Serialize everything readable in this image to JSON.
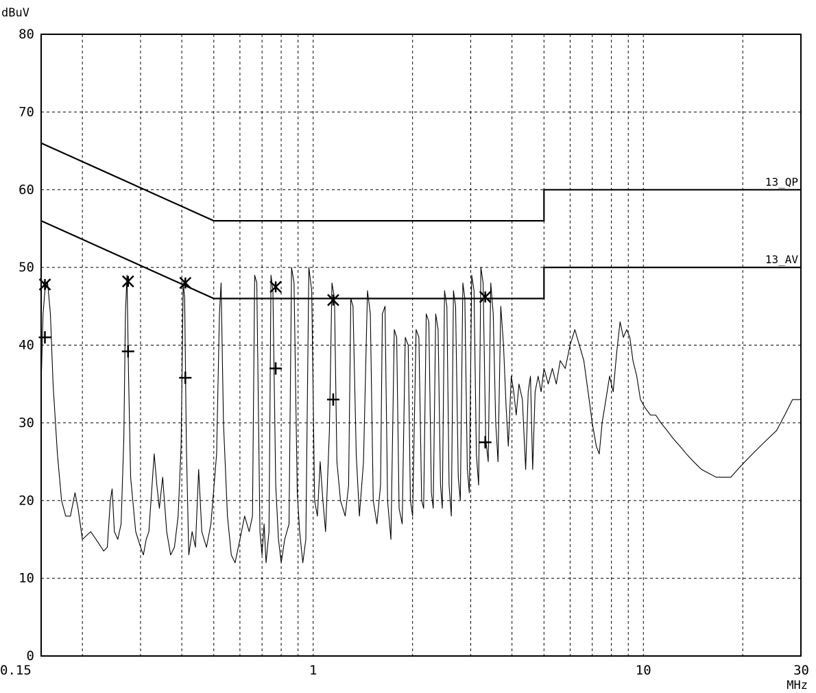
{
  "chart_data": {
    "type": "line",
    "ylabel": "dBuV",
    "xlabel": "MHz",
    "x_scale": "log",
    "xlim": [
      0.15,
      30
    ],
    "ylim": [
      0,
      80
    ],
    "grid": true,
    "x_tick_labels": [
      {
        "value": 0.15,
        "label": "0.15"
      },
      {
        "value": 1,
        "label": "1"
      },
      {
        "value": 10,
        "label": "10"
      },
      {
        "value": 30,
        "label": "30"
      }
    ],
    "y_tick_labels": [
      {
        "value": 0,
        "label": "0"
      },
      {
        "value": 10,
        "label": "10"
      },
      {
        "value": 20,
        "label": "20"
      },
      {
        "value": 30,
        "label": "30"
      },
      {
        "value": 40,
        "label": "40"
      },
      {
        "value": 50,
        "label": "50"
      },
      {
        "value": 60,
        "label": "60"
      },
      {
        "value": 70,
        "label": "70"
      },
      {
        "value": 80,
        "label": "80"
      }
    ],
    "limit_lines": [
      {
        "name": "13_QP",
        "points": [
          [
            0.15,
            66
          ],
          [
            0.5,
            56
          ],
          [
            5,
            56
          ],
          [
            5,
            60
          ],
          [
            30,
            60
          ]
        ]
      },
      {
        "name": "13_AV",
        "points": [
          [
            0.15,
            56
          ],
          [
            0.5,
            46
          ],
          [
            5,
            46
          ],
          [
            5,
            50
          ],
          [
            30,
            50
          ]
        ]
      }
    ],
    "trace": [
      [
        0.15,
        35
      ],
      [
        0.152,
        44
      ],
      [
        0.154,
        47
      ],
      [
        0.157,
        48
      ],
      [
        0.16,
        44
      ],
      [
        0.163,
        35
      ],
      [
        0.168,
        26
      ],
      [
        0.173,
        20
      ],
      [
        0.178,
        18
      ],
      [
        0.184,
        18
      ],
      [
        0.19,
        21
      ],
      [
        0.194,
        19
      ],
      [
        0.2,
        15
      ],
      [
        0.212,
        16
      ],
      [
        0.22,
        15
      ],
      [
        0.232,
        13.5
      ],
      [
        0.238,
        14
      ],
      [
        0.243,
        20
      ],
      [
        0.246,
        21.5
      ],
      [
        0.25,
        16
      ],
      [
        0.256,
        15
      ],
      [
        0.262,
        17
      ],
      [
        0.267,
        28
      ],
      [
        0.27,
        44
      ],
      [
        0.273,
        49
      ],
      [
        0.276,
        36
      ],
      [
        0.28,
        23
      ],
      [
        0.29,
        16
      ],
      [
        0.3,
        14
      ],
      [
        0.306,
        13
      ],
      [
        0.312,
        15
      ],
      [
        0.318,
        16
      ],
      [
        0.33,
        26
      ],
      [
        0.336,
        22
      ],
      [
        0.342,
        19
      ],
      [
        0.35,
        23
      ],
      [
        0.36,
        16
      ],
      [
        0.37,
        13
      ],
      [
        0.38,
        14
      ],
      [
        0.39,
        18
      ],
      [
        0.398,
        27
      ],
      [
        0.404,
        48
      ],
      [
        0.408,
        46
      ],
      [
        0.413,
        27
      ],
      [
        0.42,
        13
      ],
      [
        0.43,
        16
      ],
      [
        0.44,
        14
      ],
      [
        0.45,
        24
      ],
      [
        0.46,
        16
      ],
      [
        0.475,
        14
      ],
      [
        0.49,
        17
      ],
      [
        0.51,
        26
      ],
      [
        0.52,
        44
      ],
      [
        0.526,
        48
      ],
      [
        0.535,
        30
      ],
      [
        0.55,
        18
      ],
      [
        0.565,
        13
      ],
      [
        0.58,
        12
      ],
      [
        0.6,
        15
      ],
      [
        0.62,
        18
      ],
      [
        0.64,
        16
      ],
      [
        0.655,
        18
      ],
      [
        0.665,
        49
      ],
      [
        0.675,
        48
      ],
      [
        0.69,
        16
      ],
      [
        0.7,
        13
      ],
      [
        0.71,
        17
      ],
      [
        0.72,
        12
      ],
      [
        0.735,
        16
      ],
      [
        0.745,
        49
      ],
      [
        0.755,
        47
      ],
      [
        0.77,
        22
      ],
      [
        0.785,
        15
      ],
      [
        0.8,
        12
      ],
      [
        0.82,
        15
      ],
      [
        0.845,
        17
      ],
      [
        0.86,
        50
      ],
      [
        0.875,
        48
      ],
      [
        0.895,
        21
      ],
      [
        0.91,
        16
      ],
      [
        0.93,
        12
      ],
      [
        0.95,
        15
      ],
      [
        0.97,
        50
      ],
      [
        0.99,
        47
      ],
      [
        1.01,
        20
      ],
      [
        1.03,
        18
      ],
      [
        1.05,
        25
      ],
      [
        1.07,
        20
      ],
      [
        1.09,
        16
      ],
      [
        1.12,
        29
      ],
      [
        1.14,
        48
      ],
      [
        1.16,
        46
      ],
      [
        1.18,
        25
      ],
      [
        1.21,
        20
      ],
      [
        1.25,
        18
      ],
      [
        1.28,
        22
      ],
      [
        1.3,
        46
      ],
      [
        1.32,
        45
      ],
      [
        1.35,
        26
      ],
      [
        1.38,
        18
      ],
      [
        1.42,
        25
      ],
      [
        1.46,
        47
      ],
      [
        1.49,
        44
      ],
      [
        1.52,
        20
      ],
      [
        1.56,
        17
      ],
      [
        1.6,
        22
      ],
      [
        1.62,
        44
      ],
      [
        1.65,
        45
      ],
      [
        1.68,
        20
      ],
      [
        1.72,
        15
      ],
      [
        1.76,
        42
      ],
      [
        1.79,
        41
      ],
      [
        1.82,
        19
      ],
      [
        1.86,
        17
      ],
      [
        1.9,
        41
      ],
      [
        1.94,
        40
      ],
      [
        1.97,
        20
      ],
      [
        2.0,
        18
      ],
      [
        2.05,
        42
      ],
      [
        2.09,
        41
      ],
      [
        2.13,
        20
      ],
      [
        2.16,
        19
      ],
      [
        2.2,
        44
      ],
      [
        2.24,
        43
      ],
      [
        2.28,
        21
      ],
      [
        2.31,
        19
      ],
      [
        2.35,
        44
      ],
      [
        2.39,
        42
      ],
      [
        2.43,
        22
      ],
      [
        2.46,
        19
      ],
      [
        2.5,
        47
      ],
      [
        2.54,
        45
      ],
      [
        2.58,
        22
      ],
      [
        2.62,
        18
      ],
      [
        2.66,
        47
      ],
      [
        2.7,
        45
      ],
      [
        2.75,
        23
      ],
      [
        2.79,
        20
      ],
      [
        2.84,
        48
      ],
      [
        2.88,
        46
      ],
      [
        2.93,
        24
      ],
      [
        2.97,
        21
      ],
      [
        3.02,
        49
      ],
      [
        3.07,
        47
      ],
      [
        3.12,
        26
      ],
      [
        3.17,
        22
      ],
      [
        3.22,
        50
      ],
      [
        3.27,
        48
      ],
      [
        3.33,
        28
      ],
      [
        3.39,
        25
      ],
      [
        3.45,
        48
      ],
      [
        3.51,
        44
      ],
      [
        3.57,
        30
      ],
      [
        3.63,
        25
      ],
      [
        3.7,
        45
      ],
      [
        3.77,
        40
      ],
      [
        3.84,
        32
      ],
      [
        3.9,
        27
      ],
      [
        3.98,
        36
      ],
      [
        4.05,
        34
      ],
      [
        4.12,
        31
      ],
      [
        4.2,
        35
      ],
      [
        4.3,
        33
      ],
      [
        4.4,
        24
      ],
      [
        4.48,
        34
      ],
      [
        4.55,
        36
      ],
      [
        4.62,
        24
      ],
      [
        4.7,
        34
      ],
      [
        4.8,
        36
      ],
      [
        4.9,
        34
      ],
      [
        5.0,
        37
      ],
      [
        5.15,
        35
      ],
      [
        5.3,
        37
      ],
      [
        5.45,
        35
      ],
      [
        5.6,
        38
      ],
      [
        5.8,
        37
      ],
      [
        6.0,
        40
      ],
      [
        6.2,
        42
      ],
      [
        6.4,
        40
      ],
      [
        6.6,
        38
      ],
      [
        6.8,
        34
      ],
      [
        7.0,
        30
      ],
      [
        7.2,
        27
      ],
      [
        7.35,
        26
      ],
      [
        7.5,
        30
      ],
      [
        7.7,
        33
      ],
      [
        7.9,
        36
      ],
      [
        8.1,
        34
      ],
      [
        8.3,
        39
      ],
      [
        8.5,
        43
      ],
      [
        8.7,
        41
      ],
      [
        8.9,
        42
      ],
      [
        9.1,
        41
      ],
      [
        9.3,
        38
      ],
      [
        9.55,
        36
      ],
      [
        9.8,
        33
      ],
      [
        10.1,
        32
      ],
      [
        10.5,
        31
      ],
      [
        10.9,
        31
      ],
      [
        11.3,
        30
      ],
      [
        11.8,
        29
      ],
      [
        12.3,
        28
      ],
      [
        12.9,
        27
      ],
      [
        13.5,
        26
      ],
      [
        14.2,
        25
      ],
      [
        15.0,
        24
      ],
      [
        15.8,
        23.5
      ],
      [
        16.6,
        23
      ],
      [
        17.5,
        23
      ],
      [
        18.4,
        23
      ],
      [
        19.3,
        24
      ],
      [
        20.3,
        25
      ],
      [
        21.4,
        26
      ],
      [
        22.6,
        27
      ],
      [
        23.9,
        28
      ],
      [
        25.3,
        29
      ],
      [
        26.8,
        31
      ],
      [
        28.3,
        33
      ],
      [
        30.0,
        33
      ]
    ],
    "qp_markers": [
      [
        0.154,
        47.8
      ],
      [
        0.275,
        48.2
      ],
      [
        0.41,
        48
      ],
      [
        0.77,
        47.5
      ],
      [
        1.15,
        45.8
      ],
      [
        3.32,
        46.2
      ]
    ],
    "av_markers": [
      [
        0.154,
        41
      ],
      [
        0.275,
        39.2
      ],
      [
        0.41,
        35.8
      ],
      [
        0.77,
        37
      ],
      [
        1.15,
        33
      ],
      [
        3.32,
        27.5
      ]
    ]
  }
}
